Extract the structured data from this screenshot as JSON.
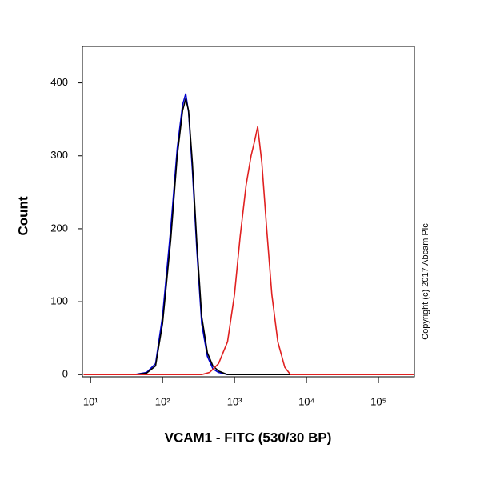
{
  "chart_data": {
    "type": "line",
    "xlabel": "VCAM1 - FITC (530/30 BP)",
    "ylabel": "Count",
    "annotation": "Copyright (c) 2017 Abcam Plc",
    "xscale": "log",
    "xlim": [
      7.7,
      316000
    ],
    "ylim": [
      -3,
      450
    ],
    "xticks": [
      {
        "value": 10,
        "label": "10¹"
      },
      {
        "value": 100,
        "label": "10²"
      },
      {
        "value": 1000,
        "label": "10³"
      },
      {
        "value": 10000,
        "label": "10⁴"
      },
      {
        "value": 100000,
        "label": "10⁵"
      }
    ],
    "yticks": [
      0,
      100,
      200,
      300,
      400
    ],
    "series": [
      {
        "color": "#0000cc",
        "x": [
          8,
          40,
          60,
          80,
          100,
          130,
          160,
          190,
          210,
          230,
          260,
          300,
          350,
          420,
          500,
          600,
          800,
          316000
        ],
        "values": [
          0,
          0,
          3,
          15,
          80,
          200,
          310,
          370,
          385,
          360,
          280,
          170,
          70,
          25,
          8,
          3,
          0,
          0
        ]
      },
      {
        "color": "#000000",
        "x": [
          8,
          40,
          60,
          80,
          100,
          130,
          160,
          190,
          210,
          230,
          260,
          300,
          350,
          420,
          500,
          600,
          800,
          316000
        ],
        "values": [
          0,
          0,
          2,
          12,
          70,
          185,
          300,
          362,
          378,
          362,
          290,
          180,
          80,
          30,
          12,
          5,
          0,
          0
        ]
      },
      {
        "color": "#e02020",
        "x": [
          8,
          350,
          450,
          600,
          800,
          1000,
          1200,
          1450,
          1700,
          1900,
          2100,
          2400,
          2800,
          3300,
          4000,
          5000,
          6000,
          316000
        ],
        "values": [
          0,
          0,
          3,
          15,
          45,
          110,
          190,
          260,
          300,
          320,
          340,
          290,
          200,
          110,
          45,
          10,
          0,
          0
        ]
      }
    ]
  }
}
